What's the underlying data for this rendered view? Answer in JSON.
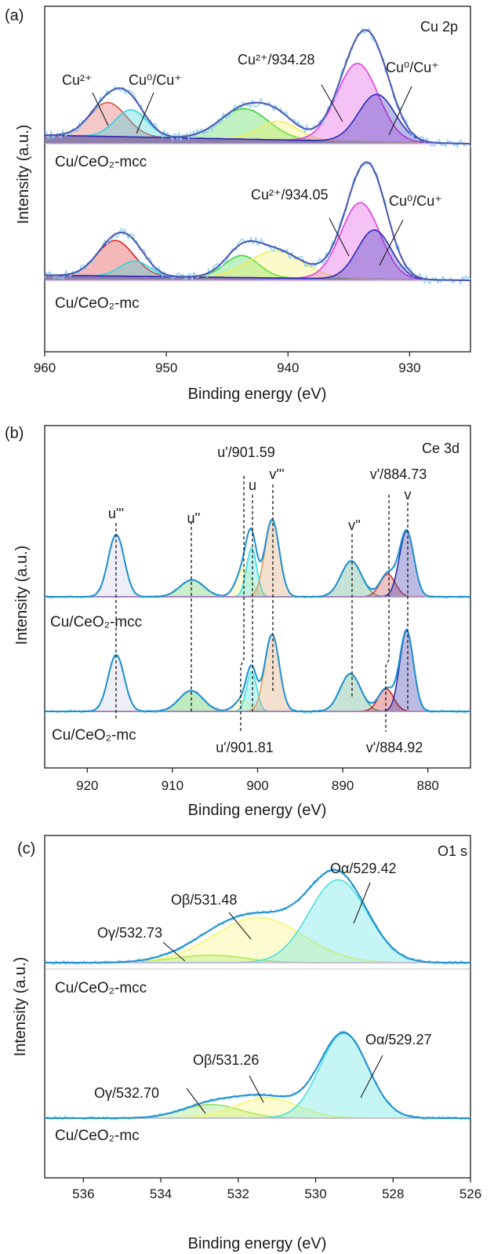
{
  "chart_data": [
    {
      "type": "line",
      "panel_label": "(a)",
      "region_label": "Cu 2p",
      "xlabel": "Binding energy (eV)",
      "ylabel": "Intensity (a.u.)",
      "xlim": [
        960,
        925
      ],
      "x_reversed": true,
      "xticks": [
        960,
        950,
        940,
        930
      ],
      "y_ticks_shown": false,
      "grid": false,
      "legend": "none",
      "samples": [
        {
          "name": "Cu/CeO₂-mcc",
          "components": [
            {
              "assign": "Cu²⁺",
              "center": 954.8,
              "height": 0.4,
              "width": 1.5,
              "color": "#d9534f"
            },
            {
              "assign": "Cu⁰/Cu⁺",
              "center": 952.9,
              "height": 0.32,
              "width": 1.3,
              "color": "#2fd3dd"
            },
            {
              "assign": "satellite",
              "center": 943.6,
              "height": 0.36,
              "width": 2.0,
              "color": "#3ad33a"
            },
            {
              "assign": "satellite",
              "center": 940.8,
              "height": 0.22,
              "width": 1.6,
              "color": "#f0f05a"
            },
            {
              "assign": "Cu²⁺/934.28",
              "center": 934.28,
              "height": 0.92,
              "width": 1.7,
              "color": "#e040e0"
            },
            {
              "assign": "Cu⁰/Cu⁺",
              "center": 932.7,
              "height": 0.56,
              "width": 1.5,
              "color": "#2a2ab8"
            }
          ]
        },
        {
          "name": "Cu/CeO₂-mc",
          "components": [
            {
              "assign": "Cu²⁺",
              "center": 954.2,
              "height": 0.42,
              "width": 1.5,
              "color": "#dd2222"
            },
            {
              "assign": "Cu⁰/Cu⁺",
              "center": 952.6,
              "height": 0.18,
              "width": 1.2,
              "color": "#2fd3dd"
            },
            {
              "assign": "satellite",
              "center": 943.8,
              "height": 0.26,
              "width": 1.4,
              "color": "#3ad33a"
            },
            {
              "assign": "satellite",
              "center": 941.0,
              "height": 0.32,
              "width": 2.2,
              "color": "#f0f05a"
            },
            {
              "assign": "Cu²⁺/934.05",
              "center": 934.05,
              "height": 0.9,
              "width": 1.6,
              "color": "#e040e0"
            },
            {
              "assign": "Cu⁰/Cu⁺",
              "center": 932.9,
              "height": 0.58,
              "width": 1.4,
              "color": "#2a2ab8"
            }
          ]
        }
      ],
      "annotations": [
        "Cu²⁺",
        "Cu⁰/Cu⁺",
        "Cu²⁺/934.28",
        "Cu⁰/Cu⁺",
        "Cu²⁺/934.05",
        "Cu⁰/Cu⁺"
      ]
    },
    {
      "type": "line",
      "panel_label": "(b)",
      "region_label": "Ce 3d",
      "xlabel": "Binding energy (eV)",
      "ylabel": "Intensity (a.u.)",
      "xlim": [
        925,
        875
      ],
      "x_reversed": true,
      "xticks": [
        920,
        910,
        900,
        890,
        880
      ],
      "y_ticks_shown": false,
      "grid": false,
      "legend": "none",
      "samples": [
        {
          "name": "Cu/CeO₂-mcc",
          "components": [
            {
              "assign": "u'''",
              "center": 916.6,
              "height": 0.66,
              "width": 0.95,
              "color": "#c9cbe6"
            },
            {
              "assign": "u''",
              "center": 907.7,
              "height": 0.18,
              "width": 1.4,
              "color": "#5bc85b"
            },
            {
              "assign": "u'",
              "center": 901.59,
              "height": 0.3,
              "width": 0.9,
              "color": "#f5f58a"
            },
            {
              "assign": "u",
              "center": 900.7,
              "height": 0.52,
              "width": 0.6,
              "color": "#3fe0e0"
            },
            {
              "assign": "v'''",
              "center": 898.3,
              "height": 0.82,
              "width": 0.85,
              "color": "#d9a06a"
            },
            {
              "assign": "v''",
              "center": 889.0,
              "height": 0.38,
              "width": 1.2,
              "color": "#4fa880"
            },
            {
              "assign": "v'",
              "center": 884.73,
              "height": 0.24,
              "width": 0.9,
              "color": "#cc4444"
            },
            {
              "assign": "v",
              "center": 882.5,
              "height": 0.7,
              "width": 0.85,
              "color": "#2a2aa8"
            }
          ]
        },
        {
          "name": "Cu/CeO₂-mc",
          "components": [
            {
              "assign": "u'''",
              "center": 916.6,
              "height": 0.6,
              "width": 0.95,
              "color": "#c9cbe6"
            },
            {
              "assign": "u''",
              "center": 907.8,
              "height": 0.22,
              "width": 1.4,
              "color": "#3fbf3f"
            },
            {
              "assign": "u'",
              "center": 901.81,
              "height": 0.12,
              "width": 0.9,
              "color": "#f5f58a"
            },
            {
              "assign": "u",
              "center": 900.7,
              "height": 0.42,
              "width": 0.6,
              "color": "#3fe0e0"
            },
            {
              "assign": "v'''",
              "center": 898.3,
              "height": 0.82,
              "width": 0.85,
              "color": "#d9a06a"
            },
            {
              "assign": "v''",
              "center": 889.1,
              "height": 0.4,
              "width": 1.2,
              "color": "#4fa880"
            },
            {
              "assign": "v'",
              "center": 884.92,
              "height": 0.24,
              "width": 0.9,
              "color": "#cc2222"
            },
            {
              "assign": "v",
              "center": 882.5,
              "height": 0.86,
              "width": 0.8,
              "color": "#2a2aa8"
            }
          ]
        }
      ],
      "annotations": [
        "u'''",
        "u''",
        "u'/901.59",
        "u",
        "v'''",
        "v''",
        "v'/884.73",
        "v",
        "u'/901.81",
        "v'/884.92"
      ]
    },
    {
      "type": "line",
      "panel_label": "(c)",
      "region_label": "O1 s",
      "xlabel": "Binding energy (eV)",
      "ylabel": "Intensity (a.u.)",
      "xlim": [
        537,
        526
      ],
      "x_reversed": true,
      "xticks": [
        536,
        534,
        532,
        530,
        528,
        526
      ],
      "y_ticks_shown": false,
      "grid": false,
      "legend": "none",
      "samples": [
        {
          "name": "Cu/CeO₂-mcc",
          "components": [
            {
              "assign": "Oγ/532.73",
              "center": 532.73,
              "height": 0.08,
              "width": 0.9,
              "color": "#90e060"
            },
            {
              "assign": "Oβ/531.48",
              "center": 531.48,
              "height": 0.48,
              "width": 1.15,
              "color": "#f5f56e"
            },
            {
              "assign": "Oα/529.42",
              "center": 529.42,
              "height": 0.88,
              "width": 0.75,
              "color": "#4fe0e0"
            }
          ]
        },
        {
          "name": "Cu/CeO₂-mc",
          "components": [
            {
              "assign": "Oγ/532.70",
              "center": 532.7,
              "height": 0.16,
              "width": 0.75,
              "color": "#90e060"
            },
            {
              "assign": "Oβ/531.26",
              "center": 531.26,
              "height": 0.24,
              "width": 0.8,
              "color": "#f5f56e"
            },
            {
              "assign": "Oα/529.27",
              "center": 529.27,
              "height": 1.0,
              "width": 0.62,
              "color": "#4fe0e0"
            }
          ]
        }
      ],
      "annotations": [
        "Oγ/532.73",
        "Oβ/531.48",
        "Oα/529.42",
        "Oγ/532.70",
        "Oβ/531.26",
        "Oα/529.27"
      ]
    }
  ]
}
